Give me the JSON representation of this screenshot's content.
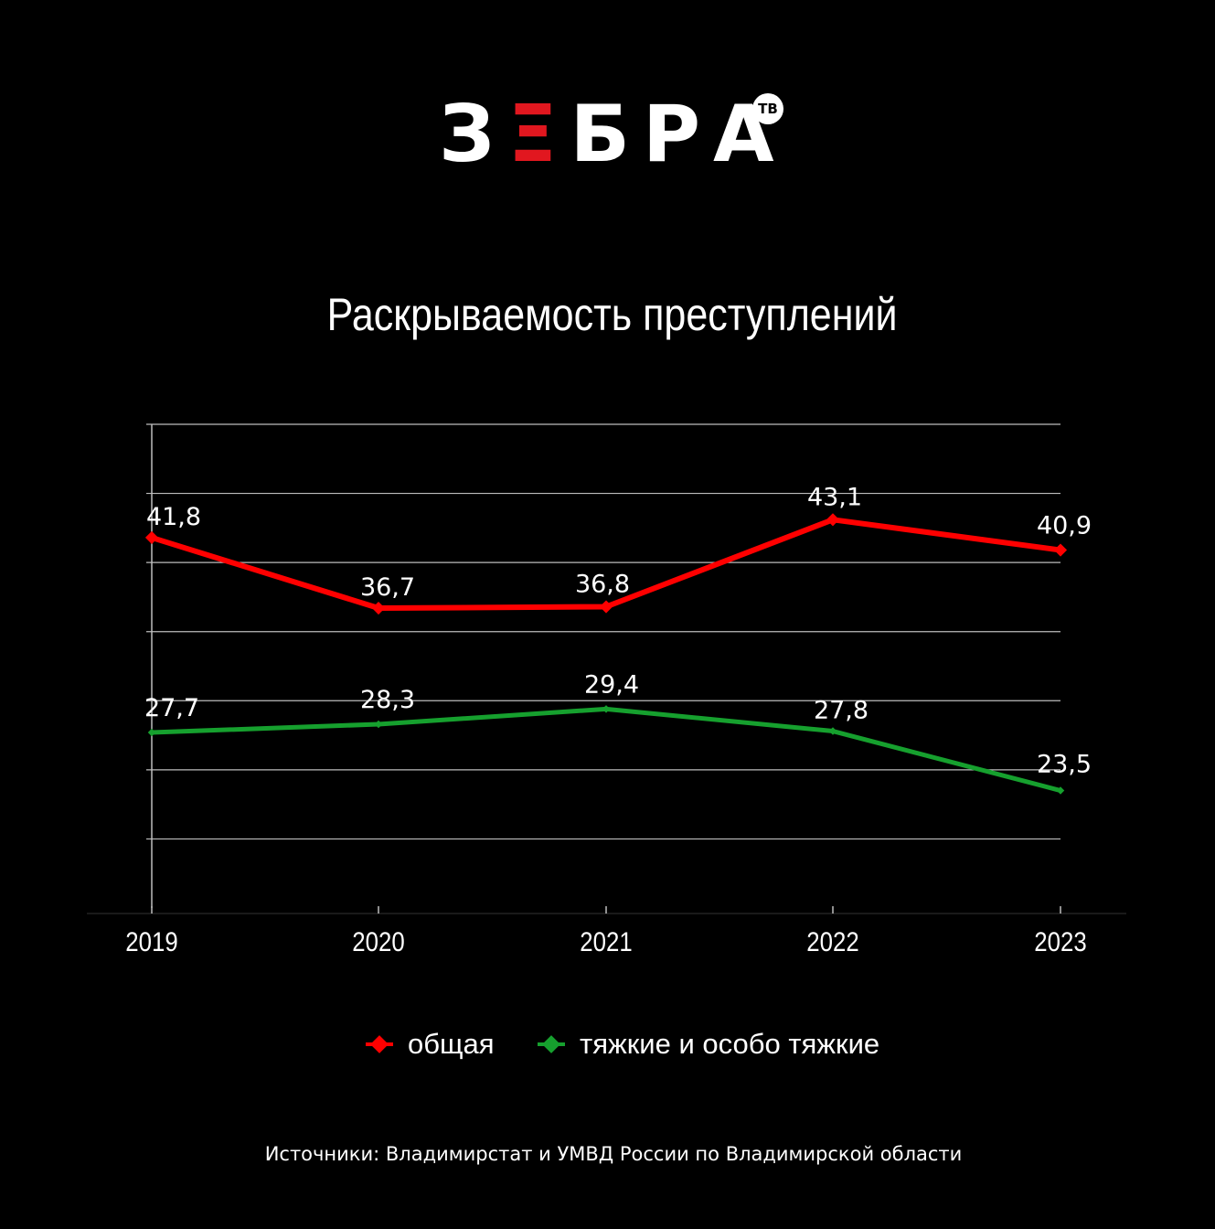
{
  "logo": {
    "text_before": "З",
    "text_accent": "Ξ",
    "text_after": "БРА",
    "badge": "ТВ",
    "accent_color": "#e1171f"
  },
  "title": "Раскрываемость преступлений",
  "source": "Источники: Владимирстат и УМВД России по Владимирской области",
  "chart_data": {
    "type": "line",
    "title": "Раскрываемость преступлений",
    "categories": [
      "2019",
      "2020",
      "2021",
      "2022",
      "2023"
    ],
    "series": [
      {
        "name": "общая",
        "color": "#ff0000",
        "values": [
          41.8,
          36.7,
          36.8,
          43.1,
          40.9
        ],
        "labels": [
          "41,8",
          "36,7",
          "36,8",
          "43,1",
          "40,9"
        ]
      },
      {
        "name": "тяжкие и особо тяжкие",
        "color": "#16a02e",
        "values": [
          27.7,
          28.3,
          29.4,
          27.8,
          23.5
        ],
        "labels": [
          "27,7",
          "28,3",
          "29,4",
          "27,8",
          "23,5"
        ]
      }
    ],
    "ylim": [
      15,
      50
    ],
    "grid": true,
    "legend_position": "bottom"
  }
}
